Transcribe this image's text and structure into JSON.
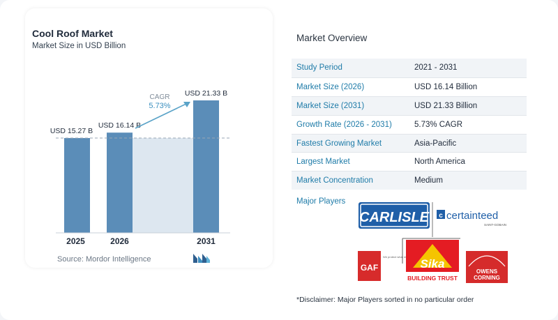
{
  "chart_data": {
    "type": "bar",
    "title": "Cool Roof Market",
    "subtitle": "Market Size in USD Billion",
    "categories": [
      "2025",
      "2026",
      "2031"
    ],
    "values": [
      15.27,
      16.14,
      21.33
    ],
    "value_labels": [
      "USD 15.27 B",
      "USD 16.14 B",
      "USD 21.33 B"
    ],
    "cagr_label": "CAGR",
    "cagr_value": "5.73%",
    "xlabel": "",
    "ylabel": "",
    "grid": false,
    "colors": {
      "bar": "#5b8db8",
      "bar_light": "#dde7f0",
      "arrow": "#5aa3c8",
      "dashed": "#9aa7b4"
    }
  },
  "source": "Source: Mordor Intelligence",
  "overview": {
    "title": "Market Overview",
    "rows": [
      {
        "label": "Study Period",
        "value": "2021 - 2031"
      },
      {
        "label": "Market Size (2026)",
        "value": "USD 16.14 Billion"
      },
      {
        "label": "Market Size (2031)",
        "value": "USD 21.33 Billion"
      },
      {
        "label": "Growth Rate (2026 - 2031)",
        "value": "5.73% CAGR"
      },
      {
        "label": "Fastest Growing Market",
        "value": "Asia-Pacific"
      },
      {
        "label": "Largest Market",
        "value": "North America"
      },
      {
        "label": "Market Concentration",
        "value": "Medium"
      }
    ]
  },
  "players": {
    "label": "Major Players",
    "logos": {
      "carlisle": "CARLISLE",
      "certainteed": "certainteed",
      "certainteed_sub": "SAINT-GOBAIN",
      "gaf": "GAF",
      "gaf_tag": "We protect what matters most",
      "sika": "Sika",
      "sika_tag": "BUILDING TRUST",
      "owens_1": "OWENS",
      "owens_2": "CORNING"
    }
  },
  "disclaimer": "*Disclaimer: Major Players sorted in no particular order"
}
